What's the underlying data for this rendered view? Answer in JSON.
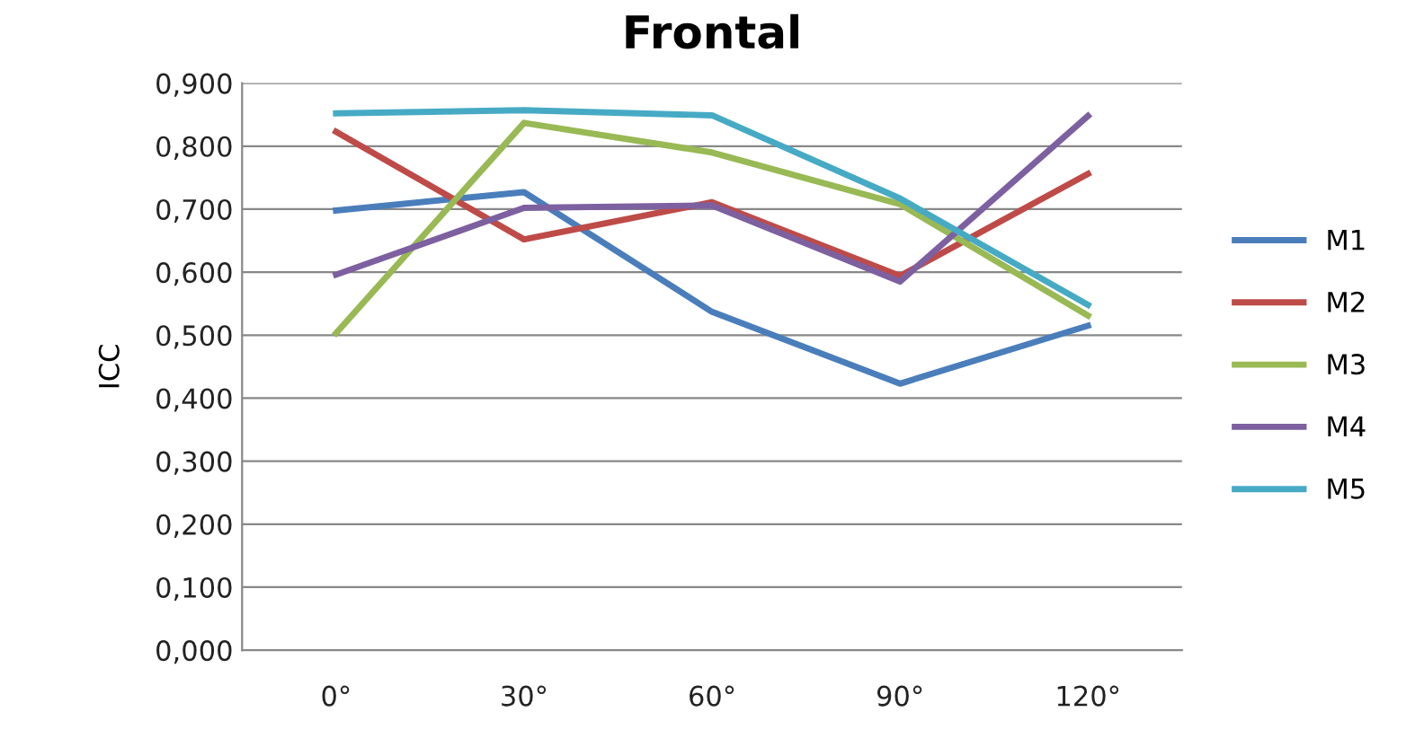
{
  "chart_data": {
    "type": "line",
    "title": "Frontal",
    "ylabel": "ICC",
    "categories": [
      "0°",
      "30°",
      "60°",
      "90°",
      "120°"
    ],
    "series": [
      {
        "name": "M1",
        "color": "#4a7ebb",
        "values": [
          0.698,
          0.727,
          0.537,
          0.423,
          0.515
        ]
      },
      {
        "name": "M2",
        "color": "#be4b48",
        "values": [
          0.823,
          0.652,
          0.711,
          0.594,
          0.756
        ]
      },
      {
        "name": "M3",
        "color": "#98b954",
        "values": [
          0.503,
          0.837,
          0.79,
          0.708,
          0.531
        ]
      },
      {
        "name": "M4",
        "color": "#7d60a0",
        "values": [
          0.596,
          0.702,
          0.706,
          0.585,
          0.848
        ]
      },
      {
        "name": "M5",
        "color": "#46aac5",
        "values": [
          0.852,
          0.857,
          0.849,
          0.717,
          0.548
        ]
      }
    ],
    "ylim": [
      0,
      0.9
    ],
    "yticks": [
      {
        "value": 0,
        "label": "0,000"
      },
      {
        "value": 0.1,
        "label": "0,100"
      },
      {
        "value": 0.2,
        "label": "0,200"
      },
      {
        "value": 0.3,
        "label": "0,300"
      },
      {
        "value": 0.4,
        "label": "0,400"
      },
      {
        "value": 0.5,
        "label": "0,500"
      },
      {
        "value": 0.6,
        "label": "0,600"
      },
      {
        "value": 0.7,
        "label": "0,700"
      },
      {
        "value": 0.8,
        "label": "0,800"
      },
      {
        "value": 0.9,
        "label": "0,900"
      }
    ],
    "grid": "y",
    "legend": "right",
    "marker": "none",
    "line_style": "solid"
  }
}
